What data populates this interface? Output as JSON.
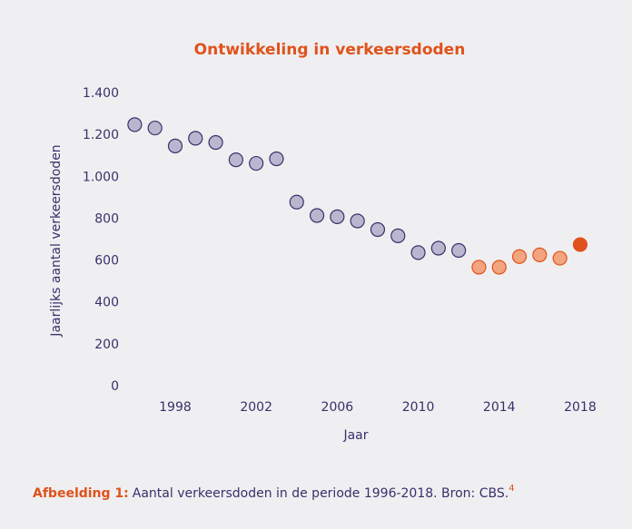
{
  "chart_data": {
    "type": "scatter",
    "title": "Ontwikkeling in verkeersdoden",
    "x_label": "Jaar",
    "y_label": "Jaarlijks aantal verkeersdoden",
    "xlim": [
      1995.4,
      2018.9
    ],
    "xticks": [
      1998,
      2002,
      2006,
      2010,
      2014,
      2018
    ],
    "ylim": [
      0,
      1400
    ],
    "yticks": [
      0,
      200,
      400,
      600,
      800,
      {
        "value": 1000,
        "label": "1.000"
      },
      {
        "value": 1200,
        "label": "1.200"
      },
      {
        "value": 1400,
        "label": "1.400"
      }
    ],
    "series": [
      {
        "color": "#bab6cf",
        "stroke": "#3b2f6b",
        "x": [
          1996,
          1997,
          1998,
          1999,
          2000,
          2001,
          2002,
          2003,
          2004,
          2005,
          2006,
          2007,
          2008,
          2009,
          2010,
          2011,
          2012
        ],
        "values": [
          1251,
          1235,
          1149,
          1186,
          1166,
          1083,
          1066,
          1088,
          881,
          817,
          811,
          791,
          750,
          720,
          640,
          661,
          650
        ]
      },
      {
        "color": "#f2a57f",
        "stroke": "#e0521c",
        "x": [
          2013,
          2014,
          2015,
          2016,
          2017
        ],
        "values": [
          570,
          570,
          621,
          629,
          613
        ]
      },
      {
        "color": "#e0521c",
        "stroke": "#e0521c",
        "x": [
          2018
        ],
        "values": [
          678
        ]
      }
    ],
    "caption": {
      "label": "Afbeelding 1:",
      "text": "Aantal verkeersdoden in de periode 1996-2018. Bron: CBS.",
      "ref": "4"
    }
  }
}
